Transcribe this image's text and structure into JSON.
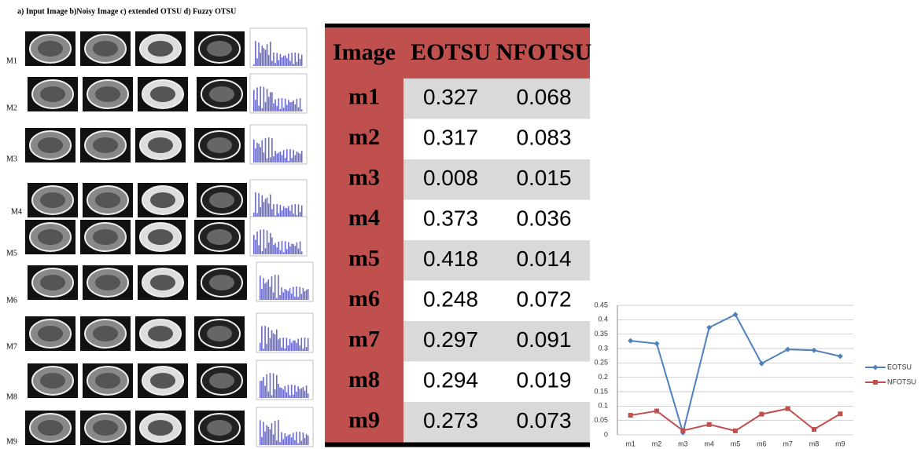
{
  "figure": {
    "caption": "a) Input Image b)Noisy Image  c) extended OTSU  d) Fuzzy OTSU",
    "row_labels": [
      "M1",
      "M2",
      "M3",
      "M4",
      "M5",
      "M6",
      "M7",
      "M8",
      "M9"
    ]
  },
  "table": {
    "header": [
      "Image",
      "EOTSU",
      "NFOTSU"
    ],
    "rows": [
      [
        "m1",
        "0.327",
        "0.068"
      ],
      [
        "m2",
        "0.317",
        "0.083"
      ],
      [
        "m3",
        "0.008",
        "0.015"
      ],
      [
        "m4",
        "0.373",
        "0.036"
      ],
      [
        "m5",
        "0.418",
        "0.014"
      ],
      [
        "m6",
        "0.248",
        "0.072"
      ],
      [
        "m7",
        "0.297",
        "0.091"
      ],
      [
        "m8",
        "0.294",
        "0.019"
      ],
      [
        "m9",
        "0.273",
        "0.073"
      ]
    ]
  },
  "chart_data": {
    "type": "line",
    "categories": [
      "m1",
      "m2",
      "m3",
      "m4",
      "m5",
      "m6",
      "m7",
      "m8",
      "m9"
    ],
    "series": [
      {
        "name": "EOTSU",
        "color": "#4f81bd",
        "marker": "diamond",
        "values": [
          0.327,
          0.317,
          0.008,
          0.373,
          0.418,
          0.248,
          0.297,
          0.294,
          0.273
        ]
      },
      {
        "name": "NFOTSU",
        "color": "#c0504d",
        "marker": "square",
        "values": [
          0.068,
          0.083,
          0.015,
          0.036,
          0.014,
          0.072,
          0.091,
          0.019,
          0.073
        ]
      }
    ],
    "ylim": [
      0,
      0.45
    ],
    "yticks": [
      0,
      0.05,
      0.1,
      0.15,
      0.2,
      0.25,
      0.3,
      0.35,
      0.4,
      0.45
    ],
    "grid": true,
    "legend": "right"
  }
}
